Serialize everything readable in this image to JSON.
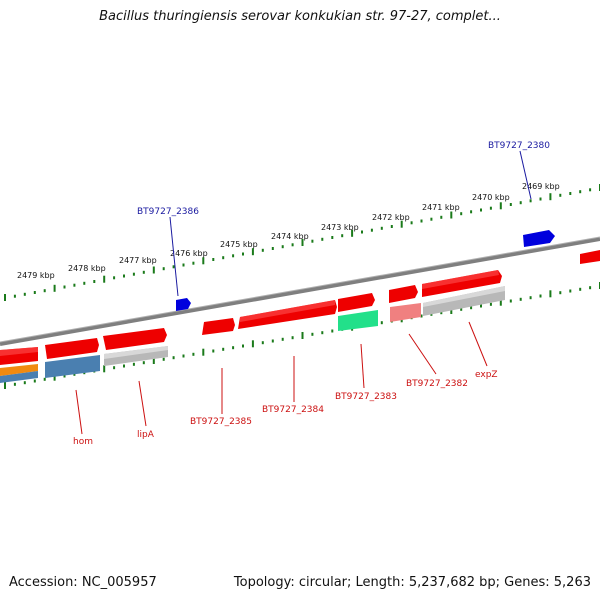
{
  "title": "Bacillus thuringiensis serovar konkukian str. 97-27, complet...",
  "footer": {
    "accession": "Accession: NC_005957",
    "topology": "Topology: circular; Length: 5,237,682 bp; Genes: 5,263"
  },
  "ticks": [
    "2479 kbp",
    "2478 kbp",
    "2477 kbp",
    "2476 kbp",
    "2475 kbp",
    "2474 kbp",
    "2473 kbp",
    "2472 kbp",
    "2471 kbp",
    "2470 kbp",
    "2469 kbp"
  ],
  "gene_labels": {
    "top": [
      "BT9727_2386",
      "BT9727_2380"
    ],
    "bottom": [
      "hom",
      "lipA",
      "BT9727_2385",
      "BT9727_2384",
      "BT9727_2383",
      "BT9727_2382",
      "expZ"
    ]
  },
  "colors": {
    "backbone": "#7f7f7f",
    "forward_gene": "#ee0000",
    "reverse_gene": "#0000dd",
    "label_top": "#1a1aa0",
    "label_bottom": "#cc1111",
    "tick_green": "#1a7a1a",
    "teal_feature": "#22e08a",
    "orange_feature": "#f08a10",
    "steelblue_feature": "#4a7fb0",
    "grey_feature": "#b8b8b8",
    "pink_feature": "#f08080"
  }
}
